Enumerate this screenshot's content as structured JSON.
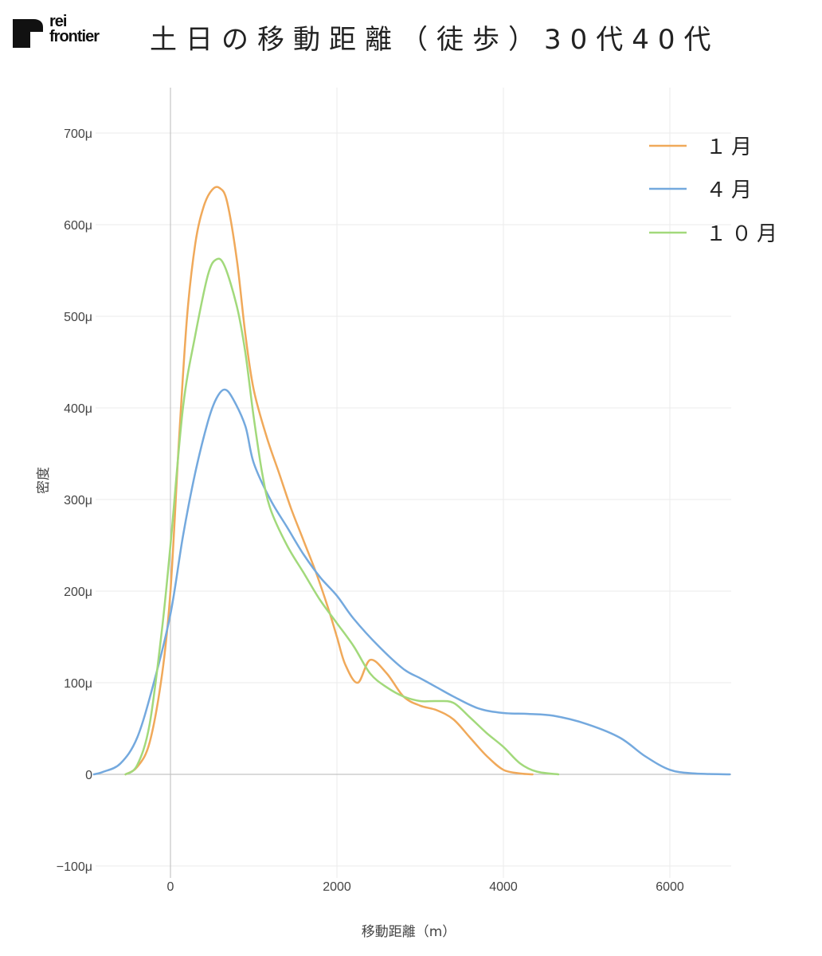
{
  "header": {
    "logo_line1": "rei",
    "logo_line2": "frontier",
    "title": "土日の移動距離（徒歩）30代40代"
  },
  "chart_data": {
    "type": "line",
    "title": "土日の移動距離（徒歩）30代40代",
    "xlabel": "移動距離（m）",
    "ylabel": "密度",
    "xlim": [
      -920,
      6720
    ],
    "ylim": [
      -110,
      750
    ],
    "x_ticks": [
      0,
      2000,
      4000,
      6000
    ],
    "x_tick_labels": [
      "0",
      "2000",
      "4000",
      "6000"
    ],
    "y_ticks": [
      -100,
      0,
      100,
      200,
      300,
      400,
      500,
      600,
      700
    ],
    "y_tick_labels": [
      "−100μ",
      "0",
      "100μ",
      "200μ",
      "300μ",
      "400μ",
      "500μ",
      "600μ",
      "700μ"
    ],
    "y_unit": "μ (×10^-6)",
    "grid": true,
    "legend_position": "top-right",
    "series": [
      {
        "name": "１月",
        "color": "#f0a95a",
        "points": [
          [
            -540,
            0
          ],
          [
            -400,
            8
          ],
          [
            -250,
            35
          ],
          [
            -100,
            110
          ],
          [
            0,
            200
          ],
          [
            100,
            360
          ],
          [
            200,
            500
          ],
          [
            300,
            580
          ],
          [
            400,
            620
          ],
          [
            500,
            638
          ],
          [
            590,
            640
          ],
          [
            680,
            625
          ],
          [
            800,
            560
          ],
          [
            900,
            480
          ],
          [
            1000,
            420
          ],
          [
            1150,
            370
          ],
          [
            1300,
            330
          ],
          [
            1450,
            290
          ],
          [
            1600,
            255
          ],
          [
            1750,
            220
          ],
          [
            1900,
            180
          ],
          [
            2000,
            150
          ],
          [
            2100,
            120
          ],
          [
            2250,
            100
          ],
          [
            2400,
            125
          ],
          [
            2600,
            110
          ],
          [
            2800,
            85
          ],
          [
            3000,
            75
          ],
          [
            3200,
            70
          ],
          [
            3400,
            60
          ],
          [
            3600,
            40
          ],
          [
            3800,
            20
          ],
          [
            4000,
            5
          ],
          [
            4200,
            1
          ],
          [
            4350,
            0
          ]
        ]
      },
      {
        "name": "４月",
        "color": "#74a9de",
        "points": [
          [
            -920,
            0
          ],
          [
            -800,
            3
          ],
          [
            -600,
            12
          ],
          [
            -400,
            40
          ],
          [
            -200,
            100
          ],
          [
            0,
            175
          ],
          [
            150,
            260
          ],
          [
            300,
            330
          ],
          [
            450,
            385
          ],
          [
            550,
            410
          ],
          [
            650,
            420
          ],
          [
            750,
            410
          ],
          [
            900,
            380
          ],
          [
            1000,
            340
          ],
          [
            1200,
            300
          ],
          [
            1400,
            270
          ],
          [
            1600,
            240
          ],
          [
            1800,
            215
          ],
          [
            2000,
            195
          ],
          [
            2200,
            170
          ],
          [
            2500,
            140
          ],
          [
            2800,
            115
          ],
          [
            3000,
            105
          ],
          [
            3200,
            95
          ],
          [
            3400,
            85
          ],
          [
            3700,
            72
          ],
          [
            4000,
            67
          ],
          [
            4300,
            66
          ],
          [
            4600,
            64
          ],
          [
            5000,
            55
          ],
          [
            5400,
            40
          ],
          [
            5700,
            20
          ],
          [
            6000,
            5
          ],
          [
            6300,
            1
          ],
          [
            6720,
            0
          ]
        ]
      },
      {
        "name": "１０月",
        "color": "#a2d97b",
        "points": [
          [
            -540,
            0
          ],
          [
            -400,
            10
          ],
          [
            -250,
            55
          ],
          [
            -100,
            160
          ],
          [
            0,
            250
          ],
          [
            150,
            400
          ],
          [
            300,
            480
          ],
          [
            450,
            545
          ],
          [
            550,
            562
          ],
          [
            650,
            555
          ],
          [
            800,
            510
          ],
          [
            900,
            460
          ],
          [
            1000,
            390
          ],
          [
            1100,
            330
          ],
          [
            1200,
            290
          ],
          [
            1400,
            250
          ],
          [
            1600,
            220
          ],
          [
            1800,
            190
          ],
          [
            2000,
            165
          ],
          [
            2200,
            140
          ],
          [
            2400,
            110
          ],
          [
            2600,
            95
          ],
          [
            2800,
            85
          ],
          [
            3000,
            80
          ],
          [
            3200,
            80
          ],
          [
            3400,
            78
          ],
          [
            3600,
            62
          ],
          [
            3800,
            45
          ],
          [
            4000,
            30
          ],
          [
            4200,
            12
          ],
          [
            4400,
            3
          ],
          [
            4660,
            0
          ]
        ]
      }
    ]
  }
}
